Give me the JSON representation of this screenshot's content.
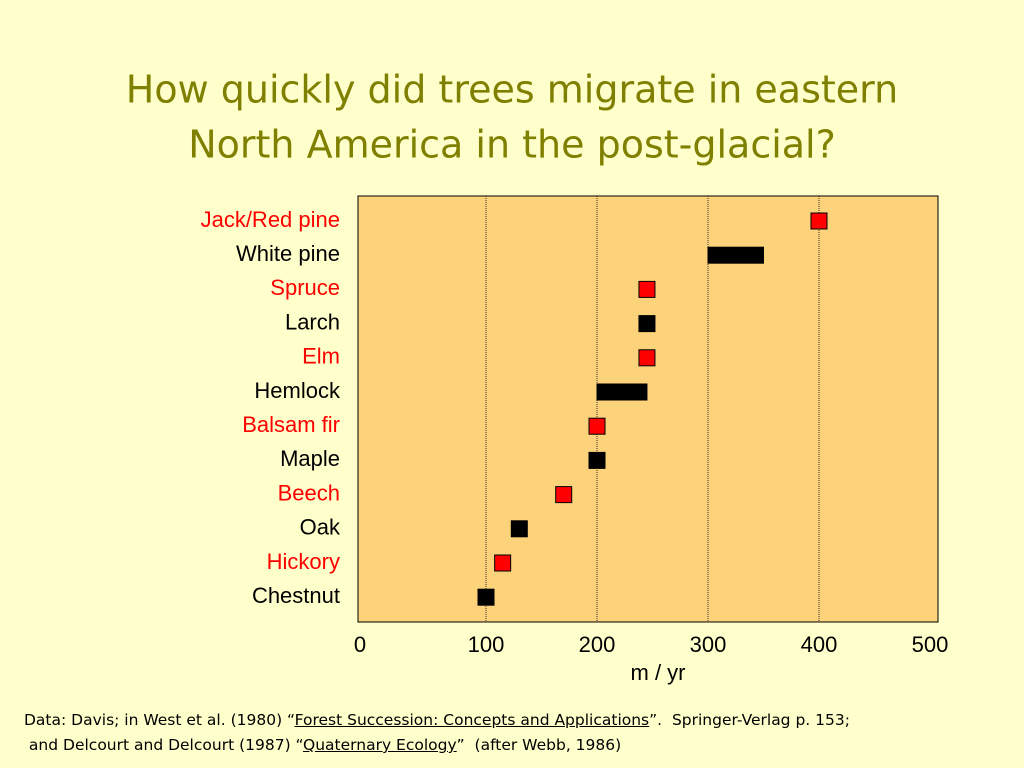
{
  "chart_data": {
    "type": "range",
    "title": [
      "How quickly did trees migrate in eastern",
      "North America in the post-glacial?"
    ],
    "categories": [
      "Jack/Red pine",
      "White pine",
      "Spruce",
      "Larch",
      "Elm",
      "Hemlock",
      "Balsam fir",
      "Maple",
      "Beech",
      "Oak",
      "Hickory",
      "Chestnut"
    ],
    "values": [
      [
        400
      ],
      [
        300,
        350
      ],
      [
        245
      ],
      [
        245
      ],
      [
        245
      ],
      [
        200,
        245
      ],
      [
        200
      ],
      [
        200
      ],
      [
        170
      ],
      [
        130
      ],
      [
        115
      ],
      [
        100
      ]
    ],
    "colors": [
      "#ff0000",
      "#000000",
      "#ff0000",
      "#000000",
      "#ff0000",
      "#000000",
      "#ff0000",
      "#000000",
      "#ff0000",
      "#000000",
      "#ff0000",
      "#000000"
    ],
    "xlim": [
      0,
      500
    ],
    "xticks": [
      0,
      100,
      200,
      300,
      400,
      500
    ],
    "grid": true,
    "xlabel": "m / yr",
    "note": [
      [
        "Data: Davis; in West et al. (1980) “",
        "Forest Succession: Concepts and Applications",
        "”.  Springer-Verlag p. 153;"
      ],
      [
        " and Delcourt and Delcourt (1987) “",
        "Quaternary Ecology",
        "”  (after Webb, 1986)"
      ]
    ]
  }
}
